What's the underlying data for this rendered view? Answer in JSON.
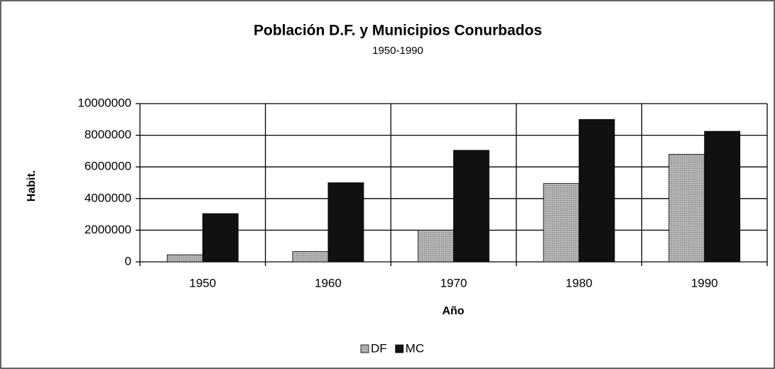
{
  "chart_data": {
    "type": "bar",
    "title": "Población D.F. y Municipios Conurbados",
    "subtitle": "1950-1990",
    "y_label": "Habit.",
    "x_label": "Año",
    "categories": [
      "1950",
      "1960",
      "1970",
      "1980",
      "1990"
    ],
    "series": [
      {
        "name": "DF",
        "color": "#a9a9a9",
        "values": [
          450000,
          650000,
          2000000,
          4950000,
          6800000
        ]
      },
      {
        "name": "MC",
        "color": "#111111",
        "values": [
          3050000,
          5000000,
          7050000,
          9000000,
          8250000
        ]
      }
    ],
    "ylim": [
      0,
      10000000
    ],
    "yticks": [
      0,
      2000000,
      4000000,
      6000000,
      8000000,
      10000000
    ],
    "grid": true,
    "legend": "bottom"
  }
}
